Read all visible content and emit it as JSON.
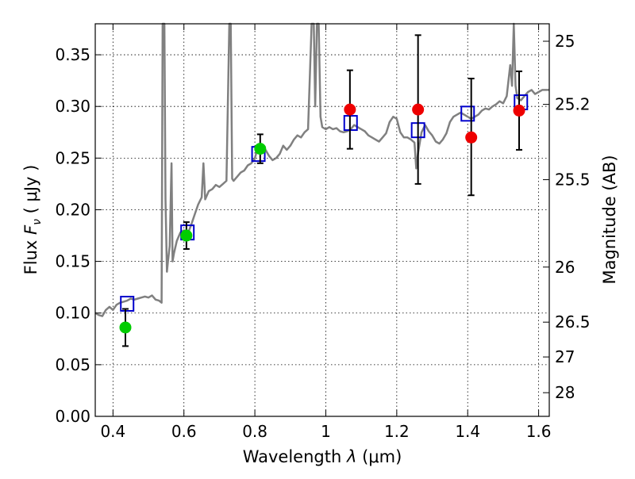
{
  "chart_data": {
    "type": "scatter",
    "title": "",
    "xlabel_prefix": "Wavelength",
    "xlabel_symbol": "λ",
    "xlabel_unit": "(μm)",
    "ylabel_prefix": "Flux",
    "ylabel_symbol": "F",
    "ylabel_subscript": "ν",
    "ylabel_unit": "( μJy )",
    "ylabel_right": "Magnitude (AB)",
    "xlim": [
      0.35,
      1.63
    ],
    "ylim": [
      0.0,
      0.38
    ],
    "grid": true,
    "x_ticks": [
      0.4,
      0.6,
      0.8,
      1.0,
      1.2,
      1.4,
      1.6
    ],
    "x_tick_labels": [
      "0.4",
      "0.6",
      "0.8",
      "1",
      "1.2",
      "1.4",
      "1.6"
    ],
    "y_ticks": [
      0.0,
      0.05,
      0.1,
      0.15,
      0.2,
      0.25,
      0.3,
      0.35
    ],
    "y_tick_labels": [
      "0.00",
      "0.05",
      "0.10",
      "0.15",
      "0.20",
      "0.25",
      "0.30",
      "0.35"
    ],
    "right_axis_labels": [
      {
        "label": "25",
        "flux": 0.3631
      },
      {
        "label": "25.2",
        "flux": 0.302
      },
      {
        "label": "25.5",
        "flux": 0.2291
      },
      {
        "label": "26",
        "flux": 0.1445
      },
      {
        "label": "26.5",
        "flux": 0.0912
      },
      {
        "label": "27",
        "flux": 0.0575
      },
      {
        "label": "28",
        "flux": 0.0229
      }
    ],
    "model_spectrum": {
      "color": "#808080",
      "points": [
        [
          0.35,
          0.1
        ],
        [
          0.36,
          0.098
        ],
        [
          0.37,
          0.097
        ],
        [
          0.38,
          0.103
        ],
        [
          0.39,
          0.106
        ],
        [
          0.4,
          0.103
        ],
        [
          0.41,
          0.108
        ],
        [
          0.42,
          0.11
        ],
        [
          0.43,
          0.111
        ],
        [
          0.44,
          0.112
        ],
        [
          0.45,
          0.114
        ],
        [
          0.46,
          0.113
        ],
        [
          0.47,
          0.114
        ],
        [
          0.48,
          0.115
        ],
        [
          0.49,
          0.116
        ],
        [
          0.5,
          0.115
        ],
        [
          0.51,
          0.117
        ],
        [
          0.52,
          0.113
        ],
        [
          0.53,
          0.112
        ],
        [
          0.537,
          0.11
        ],
        [
          0.54,
          0.38
        ],
        [
          0.545,
          0.38
        ],
        [
          0.548,
          0.21
        ],
        [
          0.552,
          0.14
        ],
        [
          0.555,
          0.15
        ],
        [
          0.56,
          0.165
        ],
        [
          0.565,
          0.245
        ],
        [
          0.568,
          0.15
        ],
        [
          0.572,
          0.158
        ],
        [
          0.58,
          0.17
        ],
        [
          0.59,
          0.178
        ],
        [
          0.6,
          0.18
        ],
        [
          0.61,
          0.176
        ],
        [
          0.62,
          0.185
        ],
        [
          0.63,
          0.195
        ],
        [
          0.64,
          0.205
        ],
        [
          0.65,
          0.212
        ],
        [
          0.655,
          0.245
        ],
        [
          0.66,
          0.21
        ],
        [
          0.67,
          0.218
        ],
        [
          0.68,
          0.22
        ],
        [
          0.69,
          0.224
        ],
        [
          0.7,
          0.222
        ],
        [
          0.71,
          0.225
        ],
        [
          0.72,
          0.228
        ],
        [
          0.728,
          0.38
        ],
        [
          0.732,
          0.38
        ],
        [
          0.736,
          0.23
        ],
        [
          0.74,
          0.228
        ],
        [
          0.75,
          0.232
        ],
        [
          0.76,
          0.236
        ],
        [
          0.77,
          0.238
        ],
        [
          0.78,
          0.243
        ],
        [
          0.79,
          0.245
        ],
        [
          0.8,
          0.25
        ],
        [
          0.81,
          0.262
        ],
        [
          0.82,
          0.255
        ],
        [
          0.83,
          0.258
        ],
        [
          0.84,
          0.252
        ],
        [
          0.85,
          0.248
        ],
        [
          0.86,
          0.25
        ],
        [
          0.87,
          0.254
        ],
        [
          0.88,
          0.262
        ],
        [
          0.89,
          0.258
        ],
        [
          0.9,
          0.262
        ],
        [
          0.91,
          0.268
        ],
        [
          0.92,
          0.272
        ],
        [
          0.93,
          0.27
        ],
        [
          0.94,
          0.275
        ],
        [
          0.95,
          0.278
        ],
        [
          0.96,
          0.38
        ],
        [
          0.966,
          0.38
        ],
        [
          0.97,
          0.3
        ],
        [
          0.975,
          0.38
        ],
        [
          0.98,
          0.38
        ],
        [
          0.985,
          0.29
        ],
        [
          0.99,
          0.28
        ],
        [
          1.0,
          0.278
        ],
        [
          1.01,
          0.28
        ],
        [
          1.02,
          0.278
        ],
        [
          1.03,
          0.279
        ],
        [
          1.04,
          0.276
        ],
        [
          1.05,
          0.275
        ],
        [
          1.06,
          0.276
        ],
        [
          1.07,
          0.278
        ],
        [
          1.08,
          0.282
        ],
        [
          1.09,
          0.28
        ],
        [
          1.1,
          0.278
        ],
        [
          1.11,
          0.276
        ],
        [
          1.12,
          0.272
        ],
        [
          1.13,
          0.27
        ],
        [
          1.14,
          0.268
        ],
        [
          1.15,
          0.266
        ],
        [
          1.16,
          0.27
        ],
        [
          1.17,
          0.274
        ],
        [
          1.18,
          0.285
        ],
        [
          1.19,
          0.29
        ],
        [
          1.2,
          0.288
        ],
        [
          1.21,
          0.275
        ],
        [
          1.22,
          0.27
        ],
        [
          1.23,
          0.27
        ],
        [
          1.24,
          0.268
        ],
        [
          1.25,
          0.265
        ],
        [
          1.255,
          0.24
        ],
        [
          1.26,
          0.255
        ],
        [
          1.27,
          0.275
        ],
        [
          1.28,
          0.282
        ],
        [
          1.29,
          0.276
        ],
        [
          1.3,
          0.272
        ],
        [
          1.31,
          0.266
        ],
        [
          1.32,
          0.264
        ],
        [
          1.33,
          0.268
        ],
        [
          1.34,
          0.274
        ],
        [
          1.35,
          0.285
        ],
        [
          1.36,
          0.29
        ],
        [
          1.37,
          0.292
        ],
        [
          1.38,
          0.294
        ],
        [
          1.39,
          0.292
        ],
        [
          1.4,
          0.29
        ],
        [
          1.41,
          0.288
        ],
        [
          1.42,
          0.29
        ],
        [
          1.43,
          0.292
        ],
        [
          1.44,
          0.296
        ],
        [
          1.45,
          0.298
        ],
        [
          1.46,
          0.297
        ],
        [
          1.47,
          0.3
        ],
        [
          1.48,
          0.302
        ],
        [
          1.49,
          0.305
        ],
        [
          1.5,
          0.303
        ],
        [
          1.51,
          0.31
        ],
        [
          1.52,
          0.34
        ],
        [
          1.525,
          0.32
        ],
        [
          1.53,
          0.38
        ],
        [
          1.535,
          0.32
        ],
        [
          1.54,
          0.308
        ],
        [
          1.55,
          0.306
        ],
        [
          1.56,
          0.31
        ],
        [
          1.57,
          0.314
        ],
        [
          1.58,
          0.316
        ],
        [
          1.59,
          0.312
        ],
        [
          1.6,
          0.314
        ],
        [
          1.61,
          0.316
        ],
        [
          1.62,
          0.316
        ],
        [
          1.63,
          0.316
        ]
      ]
    },
    "series": [
      {
        "marker": "square",
        "color": "#0000cc",
        "points": [
          {
            "x": 0.44,
            "y": 0.109
          },
          {
            "x": 0.61,
            "y": 0.178
          },
          {
            "x": 0.81,
            "y": 0.254
          },
          {
            "x": 1.07,
            "y": 0.284
          },
          {
            "x": 1.26,
            "y": 0.277
          },
          {
            "x": 1.4,
            "y": 0.293
          },
          {
            "x": 1.55,
            "y": 0.304
          }
        ]
      },
      {
        "marker": "circle",
        "color": "#00cc00",
        "points": [
          {
            "x": 0.435,
            "y": 0.086,
            "err_low": 0.018,
            "err_high": 0.018
          },
          {
            "x": 0.607,
            "y": 0.175,
            "err_low": 0.013,
            "err_high": 0.013
          },
          {
            "x": 0.815,
            "y": 0.259,
            "err_low": 0.014,
            "err_high": 0.014
          }
        ]
      },
      {
        "marker": "circle",
        "color": "#ee0000",
        "points": [
          {
            "x": 1.068,
            "y": 0.297,
            "err_low": 0.038,
            "err_high": 0.038
          },
          {
            "x": 1.26,
            "y": 0.297,
            "err_low": 0.072,
            "err_high": 0.072
          },
          {
            "x": 1.41,
            "y": 0.27,
            "err_low": 0.056,
            "err_high": 0.057
          },
          {
            "x": 1.545,
            "y": 0.296,
            "err_low": 0.038,
            "err_high": 0.038
          }
        ]
      }
    ]
  }
}
